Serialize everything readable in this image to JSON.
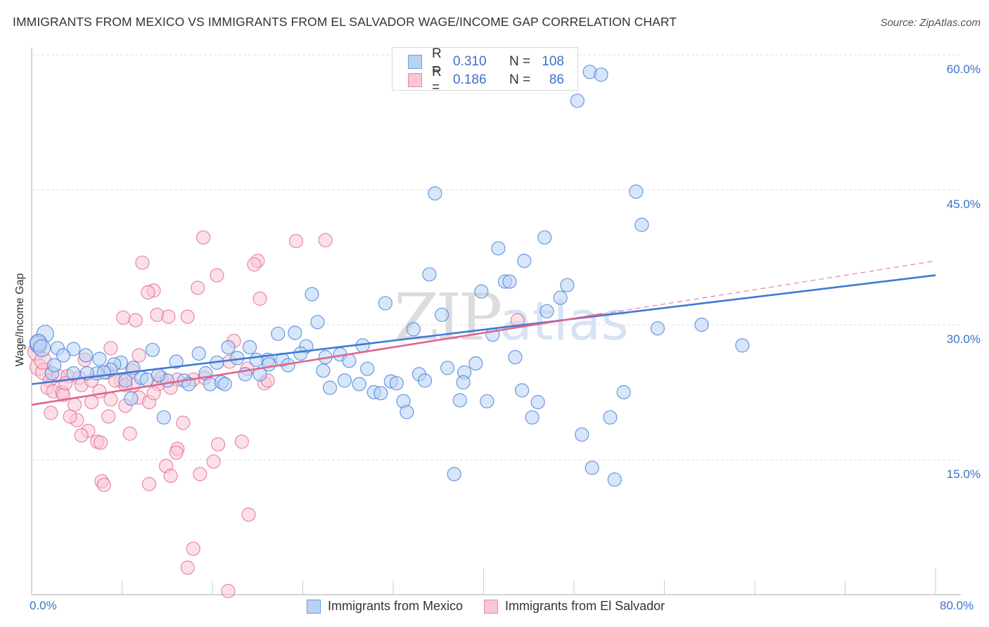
{
  "header": {
    "title": "IMMIGRANTS FROM MEXICO VS IMMIGRANTS FROM EL SALVADOR WAGE/INCOME GAP CORRELATION CHART",
    "source": "Source: ZipAtlas.com"
  },
  "watermark": {
    "zip": "ZIP",
    "atlas": "atlas"
  },
  "legend": {
    "rows": [
      {
        "r_label": "R =",
        "r_value": "0.310",
        "n_label": "N =",
        "n_value": "108",
        "color": "#6a9ee0",
        "fill": "#b8d2f4"
      },
      {
        "r_label": "R =",
        "r_value": "0.186",
        "n_label": "N =",
        "n_value": "86",
        "color": "#e88aa6",
        "fill": "#f9c6d5"
      }
    ]
  },
  "chart_data": {
    "type": "scatter",
    "title": "IMMIGRANTS FROM MEXICO VS IMMIGRANTS FROM EL SALVADOR WAGE/INCOME GAP CORRELATION CHART",
    "xlabel": "",
    "ylabel": "Wage/Income Gap",
    "xlim": [
      0,
      80
    ],
    "ylim": [
      0,
      62
    ],
    "x_tick_labels": [
      "0.0%",
      "80.0%"
    ],
    "y_ticks": [
      15,
      30,
      45,
      60
    ],
    "y_tick_labels": [
      "15.0%",
      "30.0%",
      "45.0%",
      "60.0%"
    ],
    "grid": true,
    "legend_position": "top-center",
    "series": [
      {
        "name": "Immigrants from Mexico",
        "color": "#3d7ad6",
        "fill": "#b8d2f4",
        "r": 0.31,
        "n": 108,
        "trend": {
          "x0": 0,
          "y0": 23.4,
          "x1": 80,
          "y1": 35.5,
          "dashed_from": null
        },
        "points": [
          [
            49.4,
            58.1
          ],
          [
            50.4,
            57.8
          ],
          [
            48.3,
            54.9
          ],
          [
            35.7,
            44.6
          ],
          [
            53.5,
            44.8
          ],
          [
            54.0,
            41.1
          ],
          [
            45.4,
            39.7
          ],
          [
            41.3,
            38.5
          ],
          [
            43.6,
            37.1
          ],
          [
            35.2,
            35.6
          ],
          [
            41.9,
            34.8
          ],
          [
            42.3,
            34.8
          ],
          [
            47.4,
            34.4
          ],
          [
            39.8,
            33.7
          ],
          [
            24.8,
            33.4
          ],
          [
            46.8,
            33.0
          ],
          [
            31.3,
            32.4
          ],
          [
            36.3,
            31.1
          ],
          [
            45.6,
            31.5
          ],
          [
            25.3,
            30.3
          ],
          [
            33.8,
            29.5
          ],
          [
            55.4,
            29.6
          ],
          [
            59.3,
            30.0
          ],
          [
            62.9,
            27.7
          ],
          [
            21.8,
            29.0
          ],
          [
            23.3,
            29.1
          ],
          [
            40.8,
            28.9
          ],
          [
            1.2,
            29.0
          ],
          [
            0.6,
            27.8
          ],
          [
            2.3,
            27.4
          ],
          [
            3.7,
            27.3
          ],
          [
            4.8,
            26.6
          ],
          [
            10.7,
            27.2
          ],
          [
            17.4,
            27.5
          ],
          [
            19.3,
            27.5
          ],
          [
            24.3,
            27.6
          ],
          [
            29.3,
            27.7
          ],
          [
            27.3,
            26.7
          ],
          [
            2.8,
            26.6
          ],
          [
            7.9,
            25.8
          ],
          [
            7.3,
            25.6
          ],
          [
            12.8,
            25.9
          ],
          [
            14.8,
            26.8
          ],
          [
            16.4,
            25.8
          ],
          [
            18.2,
            26.3
          ],
          [
            20.9,
            26.1
          ],
          [
            22.2,
            26.1
          ],
          [
            22.7,
            25.5
          ],
          [
            19.9,
            26.1
          ],
          [
            23.8,
            26.8
          ],
          [
            28.1,
            26.0
          ],
          [
            42.8,
            26.4
          ],
          [
            39.3,
            25.7
          ],
          [
            36.8,
            25.2
          ],
          [
            29.7,
            25.1
          ],
          [
            25.8,
            24.9
          ],
          [
            38.3,
            24.7
          ],
          [
            18.9,
            24.5
          ],
          [
            20.2,
            24.5
          ],
          [
            7.0,
            25.0
          ],
          [
            5.8,
            24.6
          ],
          [
            6.4,
            24.7
          ],
          [
            15.4,
            24.6
          ],
          [
            34.3,
            24.5
          ],
          [
            31.8,
            23.7
          ],
          [
            34.8,
            23.8
          ],
          [
            38.2,
            23.6
          ],
          [
            27.7,
            23.8
          ],
          [
            29.0,
            23.4
          ],
          [
            30.3,
            22.5
          ],
          [
            30.9,
            22.4
          ],
          [
            32.3,
            23.5
          ],
          [
            26.4,
            23.0
          ],
          [
            8.3,
            23.8
          ],
          [
            9.7,
            24.1
          ],
          [
            10.2,
            23.9
          ],
          [
            12.0,
            23.8
          ],
          [
            13.5,
            23.8
          ],
          [
            13.9,
            23.4
          ],
          [
            15.8,
            23.4
          ],
          [
            16.8,
            23.6
          ],
          [
            17.1,
            23.4
          ],
          [
            1.8,
            24.6
          ],
          [
            3.7,
            24.6
          ],
          [
            4.9,
            24.6
          ],
          [
            43.4,
            22.7
          ],
          [
            52.4,
            22.5
          ],
          [
            32.9,
            21.5
          ],
          [
            37.9,
            21.6
          ],
          [
            40.3,
            21.5
          ],
          [
            44.8,
            21.4
          ],
          [
            33.2,
            20.3
          ],
          [
            8.8,
            21.8
          ],
          [
            11.7,
            19.7
          ],
          [
            44.3,
            19.7
          ],
          [
            51.2,
            19.7
          ],
          [
            48.7,
            17.8
          ],
          [
            49.6,
            14.1
          ],
          [
            51.6,
            12.8
          ],
          [
            37.4,
            13.4
          ],
          [
            0.6,
            28.0
          ],
          [
            0.9,
            27.4
          ],
          [
            26.0,
            26.4
          ],
          [
            21.0,
            25.6
          ],
          [
            11.2,
            24.4
          ],
          [
            9.0,
            25.2
          ],
          [
            6.0,
            26.2
          ],
          [
            2.0,
            25.5
          ]
        ]
      },
      {
        "name": "Immigrants from El Salvador",
        "color": "#e0668c",
        "fill": "#f9c6d5",
        "r": 0.186,
        "n": 86,
        "trend": {
          "x0": 0,
          "y0": 21.1,
          "x1": 80,
          "y1": 37.1,
          "dashed_from": 50.5
        },
        "points": [
          [
            15.2,
            39.7
          ],
          [
            23.4,
            39.3
          ],
          [
            26.0,
            39.4
          ],
          [
            20.0,
            37.1
          ],
          [
            19.7,
            36.7
          ],
          [
            9.8,
            36.9
          ],
          [
            16.4,
            35.5
          ],
          [
            14.7,
            34.1
          ],
          [
            10.8,
            33.8
          ],
          [
            10.3,
            33.6
          ],
          [
            20.2,
            32.9
          ],
          [
            11.1,
            31.1
          ],
          [
            12.1,
            30.9
          ],
          [
            13.8,
            30.9
          ],
          [
            8.1,
            30.8
          ],
          [
            9.2,
            30.5
          ],
          [
            43.0,
            30.5
          ],
          [
            0.6,
            28.0
          ],
          [
            17.9,
            28.2
          ],
          [
            7.0,
            27.4
          ],
          [
            4.7,
            26.1
          ],
          [
            8.9,
            24.9
          ],
          [
            17.5,
            25.9
          ],
          [
            19.1,
            25.1
          ],
          [
            0.6,
            25.3
          ],
          [
            1.1,
            24.8
          ],
          [
            1.6,
            23.8
          ],
          [
            2.4,
            24.3
          ],
          [
            3.2,
            24.3
          ],
          [
            4.2,
            24.1
          ],
          [
            1.4,
            23.0
          ],
          [
            1.9,
            22.6
          ],
          [
            2.7,
            22.5
          ],
          [
            4.4,
            23.3
          ],
          [
            5.3,
            23.8
          ],
          [
            6.7,
            24.7
          ],
          [
            7.9,
            23.8
          ],
          [
            7.4,
            23.8
          ],
          [
            9.5,
            26.6
          ],
          [
            11.2,
            23.4
          ],
          [
            11.5,
            24.1
          ],
          [
            12.9,
            23.9
          ],
          [
            15.3,
            24.1
          ],
          [
            20.6,
            23.5
          ],
          [
            20.9,
            23.8
          ],
          [
            9.0,
            23.3
          ],
          [
            5.3,
            21.4
          ],
          [
            3.8,
            21.1
          ],
          [
            2.8,
            22.2
          ],
          [
            1.7,
            20.2
          ],
          [
            7.0,
            21.7
          ],
          [
            8.3,
            21.0
          ],
          [
            9.5,
            21.9
          ],
          [
            10.4,
            21.4
          ],
          [
            6.8,
            19.8
          ],
          [
            4.0,
            19.4
          ],
          [
            5.0,
            18.2
          ],
          [
            4.4,
            17.7
          ],
          [
            8.7,
            17.9
          ],
          [
            13.4,
            19.1
          ],
          [
            5.8,
            17.0
          ],
          [
            6.1,
            16.9
          ],
          [
            12.9,
            16.2
          ],
          [
            12.8,
            15.8
          ],
          [
            16.5,
            16.7
          ],
          [
            18.6,
            17.0
          ],
          [
            16.1,
            14.8
          ],
          [
            11.9,
            14.3
          ],
          [
            14.9,
            13.4
          ],
          [
            12.3,
            13.2
          ],
          [
            6.2,
            12.6
          ],
          [
            6.4,
            12.2
          ],
          [
            10.4,
            12.3
          ],
          [
            19.2,
            8.9
          ],
          [
            14.3,
            5.1
          ],
          [
            13.8,
            3.0
          ],
          [
            17.4,
            0.4
          ],
          [
            8.3,
            23.3
          ],
          [
            3.4,
            19.8
          ],
          [
            12.3,
            23.0
          ],
          [
            14.3,
            23.9
          ],
          [
            0.4,
            27.0
          ],
          [
            1.0,
            26.0
          ],
          [
            3.0,
            23.5
          ],
          [
            6.0,
            22.6
          ],
          [
            10.8,
            22.4
          ]
        ]
      }
    ]
  },
  "bottom_legend": {
    "items": [
      {
        "label": "Immigrants from Mexico"
      },
      {
        "label": "Immigrants from El Salvador"
      }
    ]
  }
}
